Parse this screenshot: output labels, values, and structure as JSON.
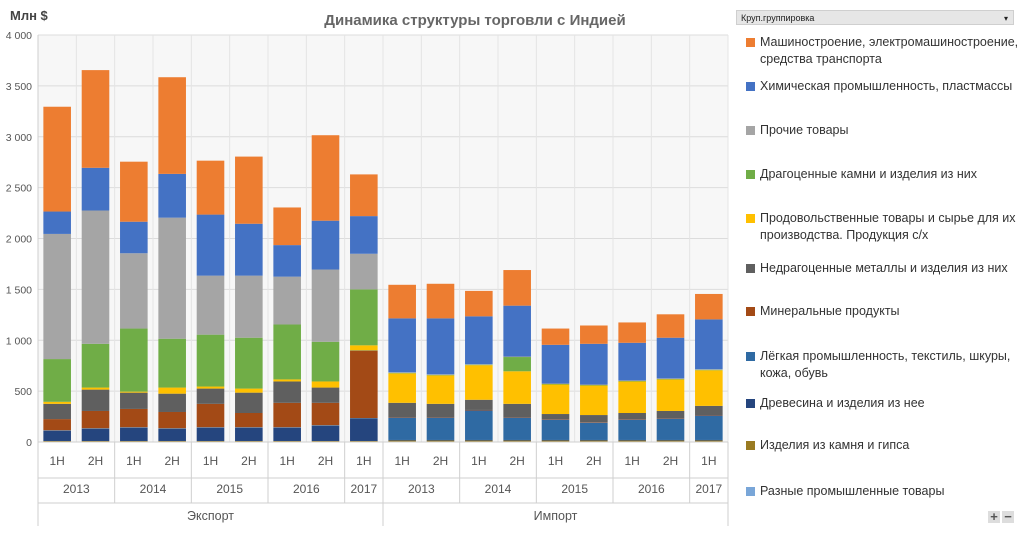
{
  "chart_data": {
    "type": "bar",
    "stacked": true,
    "title": "Динамика структуры торговли с Индией",
    "ylabel": "Млн $",
    "ylim": [
      0,
      4000
    ],
    "yticks": [
      "0",
      "500",
      "1 000",
      "1 500",
      "2 000",
      "2 500",
      "3 000",
      "3 500",
      "4 000"
    ],
    "grid": true,
    "legend_placement": "right",
    "legend_header": "Круп.группировка",
    "groups": [
      {
        "name": "Экспорт",
        "years": [
          {
            "year": "2013",
            "halves": [
              "1Н",
              "2Н"
            ]
          },
          {
            "year": "2014",
            "halves": [
              "1Н",
              "2Н"
            ]
          },
          {
            "year": "2015",
            "halves": [
              "1Н",
              "2Н"
            ]
          },
          {
            "year": "2016",
            "halves": [
              "1Н",
              "2Н"
            ]
          },
          {
            "year": "2017",
            "halves": [
              "1Н"
            ]
          }
        ]
      },
      {
        "name": "Импорт",
        "years": [
          {
            "year": "2013",
            "halves": [
              "1Н",
              "2Н"
            ]
          },
          {
            "year": "2014",
            "halves": [
              "1Н",
              "2Н"
            ]
          },
          {
            "year": "2015",
            "halves": [
              "1Н",
              "2Н"
            ]
          },
          {
            "year": "2016",
            "halves": [
              "1Н",
              "2Н"
            ]
          },
          {
            "year": "2017",
            "halves": [
              "1Н"
            ]
          }
        ]
      }
    ],
    "series": [
      {
        "name": "Разные промышленные товары",
        "color": "#79a6d8",
        "values": [
          5,
          5,
          5,
          5,
          5,
          5,
          5,
          5,
          5,
          5,
          5,
          5,
          5,
          5,
          5,
          5,
          5,
          5
        ]
      },
      {
        "name": "Изделия из камня и гипса",
        "color": "#9a7b22",
        "values": [
          5,
          5,
          5,
          5,
          5,
          5,
          5,
          5,
          5,
          10,
          10,
          10,
          10,
          10,
          10,
          10,
          10,
          10
        ]
      },
      {
        "name": "Древесина и изделия из нее",
        "color": "#25457e",
        "values": [
          100,
          120,
          130,
          120,
          130,
          130,
          130,
          150,
          220,
          5,
          5,
          5,
          5,
          5,
          5,
          5,
          5,
          5
        ]
      },
      {
        "name": "Лёгкая промышленность, текстиль, шкуры, кожа, обувь",
        "color": "#2f6aa3",
        "values": [
          5,
          5,
          5,
          5,
          5,
          5,
          5,
          5,
          5,
          220,
          220,
          290,
          220,
          200,
          170,
          200,
          210,
          240
        ]
      },
      {
        "name": "Минеральные продукты",
        "color": "#a34a16",
        "values": [
          110,
          170,
          180,
          160,
          230,
          140,
          240,
          220,
          660,
          5,
          5,
          5,
          5,
          5,
          5,
          5,
          5,
          5
        ]
      },
      {
        "name": "Недрагоценные металлы и изделия из них",
        "color": "#5f5f5f",
        "values": [
          150,
          210,
          160,
          180,
          150,
          200,
          210,
          150,
          5,
          140,
          130,
          100,
          130,
          50,
          70,
          60,
          70,
          90
        ]
      },
      {
        "name": "Продовольственные товары и сырье для их производства. Продукция с/х",
        "color": "#ffc000",
        "values": [
          20,
          20,
          10,
          60,
          20,
          40,
          20,
          60,
          50,
          290,
          280,
          340,
          320,
          290,
          290,
          310,
          310,
          350
        ]
      },
      {
        "name": "Драгоценные камни и изделия из них",
        "color": "#70ad47",
        "values": [
          420,
          430,
          620,
          480,
          510,
          500,
          540,
          390,
          550,
          5,
          5,
          5,
          140,
          5,
          5,
          5,
          5,
          5
        ]
      },
      {
        "name": "Прочие товары",
        "color": "#a5a5a5",
        "values": [
          1230,
          1310,
          740,
          1190,
          580,
          610,
          470,
          710,
          350,
          5,
          5,
          5,
          5,
          5,
          5,
          5,
          5,
          5
        ]
      },
      {
        "name": "Химическая промышленность, пластмассы",
        "color": "#4472c4",
        "values": [
          220,
          420,
          310,
          430,
          600,
          510,
          310,
          480,
          370,
          530,
          550,
          470,
          500,
          380,
          400,
          370,
          400,
          490
        ]
      },
      {
        "name": "Машиностроение, электромашиностроение, средства транспорта",
        "color": "#ed7d31",
        "values": [
          1030,
          960,
          590,
          950,
          530,
          660,
          370,
          840,
          410,
          330,
          340,
          250,
          350,
          160,
          180,
          200,
          230,
          250
        ]
      }
    ]
  },
  "legend_order": [
    10,
    9,
    8,
    7,
    6,
    5,
    4,
    3,
    2,
    1,
    0
  ],
  "zoom": {
    "plus": "+",
    "minus": "−"
  }
}
